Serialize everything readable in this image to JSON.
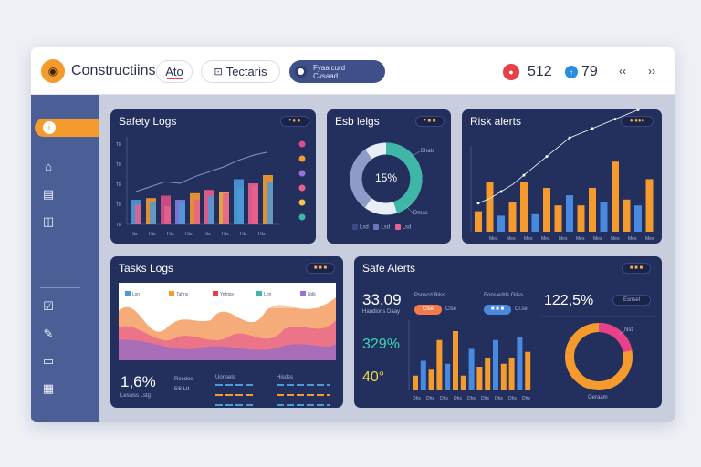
{
  "header": {
    "brand": "Constructiins",
    "tab_ato": "Ato",
    "tab_tech": "Tectaris",
    "tech_icon": "tag-icon",
    "blue_pill_line1": "Fyaaicurd",
    "blue_pill_line2": "Cvsaad",
    "alerts_count": "512",
    "alerts_color": "#e8404b",
    "tasks_count": "79",
    "tasks_color": "#2a8de0",
    "nav_prev": "‹‹",
    "nav_next": "››"
  },
  "sidebar": {
    "active_label": "i",
    "items": [
      "home-icon",
      "clipboard-icon",
      "camera-icon",
      "checklist-icon",
      "wrench-icon",
      "monitor-icon",
      "report-icon"
    ]
  },
  "safety_logs": {
    "title": "Safety Logs",
    "badge": "• ● ●",
    "y_ticks": [
      "T8",
      "T8",
      "T8",
      "T8",
      "T8"
    ],
    "x_ticks": [
      "Hts",
      "Hts",
      "Hts",
      "Hts",
      "Hts",
      "Hts",
      "Hts",
      "Hts"
    ],
    "bars_a": [
      30,
      32,
      35,
      30,
      38,
      42,
      40,
      55,
      50,
      60
    ],
    "bars_b": [
      24,
      28,
      22,
      26,
      30,
      34,
      38,
      44,
      48,
      52
    ],
    "line": [
      40,
      46,
      52,
      50,
      58,
      64,
      70,
      78,
      84,
      88
    ],
    "legend_colors": [
      "#d9508a",
      "#f59a2d",
      "#9a6fd6",
      "#e8628d",
      "#f7c34a",
      "#3fb7a8"
    ]
  },
  "esb_logs": {
    "title": "Esb lelgs",
    "badge": "• ■ ■",
    "donut_value": "15%",
    "callout_top": "Bhals",
    "callout_bottom": "Dmas",
    "legend": [
      "Lsd",
      "Lsd",
      "Lsd"
    ],
    "teal_fraction": 0.45,
    "grey_fraction": 0.3
  },
  "risk_alerts": {
    "title": "Risk alerts",
    "badge": "● ●●●",
    "bars": [
      14,
      34,
      11,
      20,
      34,
      12,
      30,
      18,
      25,
      18,
      30,
      20,
      48,
      22,
      18,
      36
    ],
    "line": [
      20,
      22,
      25,
      28,
      32,
      36,
      40,
      44,
      48,
      50,
      52,
      54,
      56,
      58,
      60,
      62
    ],
    "x_ticks": [
      "Mes",
      "Mes",
      "Mes",
      "Mes",
      "Mes",
      "Mes",
      "Mes",
      "Mes",
      "Mes",
      "Mes"
    ]
  },
  "tasks_logs": {
    "title": "Tasks Logs",
    "badge": "■ ■ ■",
    "legend": [
      "Lsn",
      "Tahns",
      "Yehtay",
      "Lhn",
      "Ndk"
    ],
    "big_value": "1,6%",
    "caption": "Leswss Lstg",
    "side_label_top": "Resdos",
    "side_label_bottom": "5l8 Ltt",
    "col1_title": "Uonsels",
    "col2_title": "Hisdss"
  },
  "safe_alerts": {
    "title": "Safe Alerts",
    "badge": "■ ■ ■",
    "value_main": "33,09",
    "caption_main": "Haudions Daay",
    "value_teal": "329%",
    "value_yellow": "40°",
    "label_col1": "Psnscd Bilss",
    "label_col2": "Eonsiedds Gliss",
    "btn_orange": "Clse",
    "btn_blue": "Cl.se",
    "btn_blue_alt": "■ ■ ■",
    "donut_value": "122,5%",
    "donut_badge": "Esnsel",
    "donut_callout": "Nst",
    "donut_caption": "Oeraam",
    "bars": [
      10,
      20,
      14,
      34,
      18,
      40,
      10,
      28,
      16,
      22,
      34,
      18,
      22,
      36,
      26
    ],
    "x_ticks": [
      "Dhs",
      "Dhs",
      "Dhs",
      "Dhs",
      "Dhs",
      "Dhs",
      "Dhs",
      "Dhs",
      "Dhs"
    ]
  }
}
